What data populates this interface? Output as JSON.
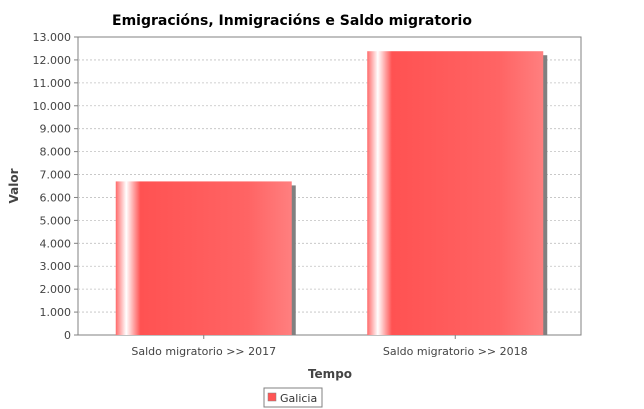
{
  "chart_data": {
    "type": "bar",
    "title": "Emigracións, Inmigracións e Saldo migratorio",
    "xlabel": "Tempo",
    "ylabel": "Valor",
    "categories": [
      "Saldo migratorio >> 2017",
      "Saldo migratorio >> 2018"
    ],
    "series": [
      {
        "name": "Galicia",
        "values": [
          6700,
          12380
        ]
      }
    ],
    "ylim": [
      0,
      13000
    ],
    "yticks": [
      0,
      1000,
      2000,
      3000,
      4000,
      5000,
      6000,
      7000,
      8000,
      9000,
      10000,
      11000,
      12000,
      13000
    ],
    "ytick_labels": [
      "0",
      "1.000",
      "2.000",
      "3.000",
      "4.000",
      "5.000",
      "6.000",
      "7.000",
      "8.000",
      "9.000",
      "10.000",
      "11.000",
      "12.000",
      "13.000"
    ],
    "grid": true,
    "legend_position": "bottom",
    "colors": {
      "bar": "#ff5555",
      "shadow": "#808080",
      "grid": "#c0c0c0",
      "axis": "#808080"
    }
  }
}
